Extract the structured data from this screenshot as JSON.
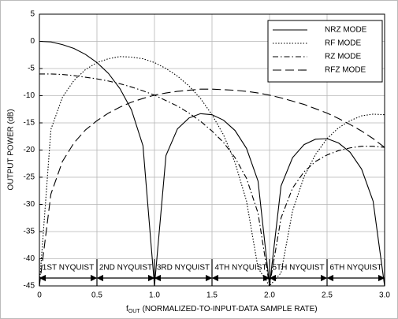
{
  "chart_data": {
    "type": "line",
    "y_label": "OUTPUT POWER (dB)",
    "x_label_symbol": "f",
    "x_label_subscript": "OUT",
    "x_label": "(NORMALIZED-TO-INPUT-DATA SAMPLE RATE)",
    "x": [
      0,
      0.1,
      0.2,
      0.3,
      0.4,
      0.5,
      0.6,
      0.7,
      0.8,
      0.9,
      1.0,
      1.1,
      1.2,
      1.3,
      1.4,
      1.5,
      1.6,
      1.7,
      1.8,
      1.9,
      2.0,
      2.1,
      2.2,
      2.3,
      2.4,
      2.5,
      2.6,
      2.7,
      2.8,
      2.9,
      3.0
    ],
    "series": [
      {
        "name": "NRZ MODE",
        "color": "#000000",
        "style": "solid",
        "values": [
          0,
          -0.1,
          -0.6,
          -1.3,
          -2.4,
          -3.9,
          -5.9,
          -8.7,
          -12.6,
          -19.2,
          -45,
          -21.0,
          -16.1,
          -14.1,
          -13.3,
          -13.5,
          -14.5,
          -16.4,
          -19.7,
          -25.7,
          -45,
          -26.6,
          -21.4,
          -19.0,
          -18.0,
          -17.9,
          -18.7,
          -20.4,
          -23.5,
          -29.4,
          -45
        ]
      },
      {
        "name": "RF MODE",
        "color": "#000000",
        "style": "dotted",
        "values": [
          -45,
          -16.2,
          -10.3,
          -7.2,
          -5.2,
          -3.9,
          -3.2,
          -2.8,
          -2.9,
          -3.2,
          -3.9,
          -5.0,
          -6.4,
          -8.2,
          -10.5,
          -13.5,
          -17.2,
          -22.3,
          -29.4,
          -41.7,
          -45,
          -42.6,
          -31.2,
          -24.9,
          -20.8,
          -17.9,
          -15.9,
          -14.6,
          -13.7,
          -13.4,
          -13.5
        ]
      },
      {
        "name": "RZ MODE",
        "color": "#000000",
        "style": "dashdot",
        "values": [
          -6.0,
          -6.0,
          -6.1,
          -6.3,
          -6.6,
          -6.9,
          -7.3,
          -7.8,
          -8.4,
          -9.1,
          -9.9,
          -10.9,
          -11.9,
          -13.2,
          -14.7,
          -16.5,
          -18.6,
          -21.4,
          -25.2,
          -31.6,
          -45,
          -32.5,
          -27.0,
          -24.0,
          -22.1,
          -20.9,
          -20.1,
          -19.6,
          -19.3,
          -19.3,
          -19.5
        ]
      },
      {
        "name": "RFZ MODE",
        "color": "#000000",
        "style": "dashed",
        "values": [
          -45,
          -28.1,
          -22.1,
          -18.7,
          -16.3,
          -14.6,
          -13.2,
          -12.1,
          -11.2,
          -10.5,
          -9.9,
          -9.5,
          -9.2,
          -9.0,
          -8.8,
          -8.8,
          -8.9,
          -9.0,
          -9.2,
          -9.5,
          -9.9,
          -10.4,
          -11.0,
          -11.6,
          -12.4,
          -13.2,
          -14.2,
          -15.3,
          -16.5,
          -17.9,
          -19.5
        ]
      }
    ],
    "zones": [
      "1ST NYQUIST",
      "2ND NYQUIST",
      "3RD NYQUIST",
      "4TH NYQUIST",
      "5TH NYQUIST",
      "6TH NYQUIST"
    ],
    "xlim": [
      0,
      3
    ],
    "xticks": [
      0,
      0.5,
      {
        "value": 1,
        "label": "1.0"
      },
      1.5,
      {
        "value": 2,
        "label": "2.0"
      },
      2.5,
      {
        "value": 3,
        "label": "3.0"
      }
    ],
    "ylim": [
      -45,
      5
    ],
    "yticks": [
      5,
      0,
      -5,
      -10,
      -15,
      -20,
      -25,
      -30,
      -35,
      -40,
      -45
    ],
    "grid": true,
    "legend": "upper right"
  }
}
